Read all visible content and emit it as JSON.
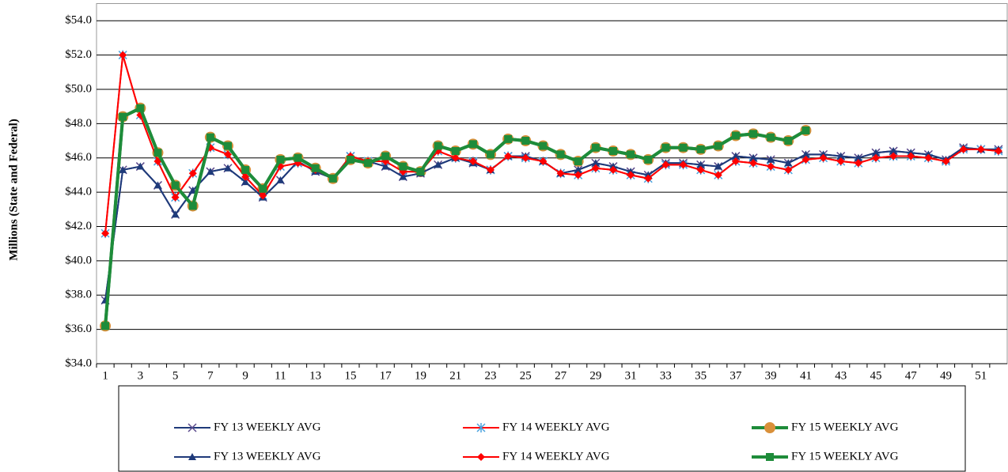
{
  "chart_data": {
    "type": "line",
    "y_label": "Millions (State and Federal)",
    "categories": [
      "1",
      null,
      "3",
      null,
      "5",
      null,
      "7",
      null,
      "9",
      null,
      "11",
      null,
      "13",
      null,
      "15",
      null,
      "17",
      null,
      "19",
      null,
      "21",
      null,
      "23",
      null,
      "25",
      null,
      "27",
      null,
      "29",
      null,
      "31",
      null,
      "33",
      null,
      "35",
      null,
      "37",
      null,
      "39",
      null,
      "41",
      null,
      "43",
      null,
      "45",
      null,
      "47",
      null,
      "49",
      null,
      "51",
      null
    ],
    "ylim": [
      34,
      55
    ],
    "yticks": [
      {
        "value": 34,
        "label": "$34.0"
      },
      {
        "value": 36,
        "label": "$36.0"
      },
      {
        "value": 38,
        "label": "$38.0"
      },
      {
        "value": 40,
        "label": "$40.0"
      },
      {
        "value": 42,
        "label": "$42.0"
      },
      {
        "value": 44,
        "label": "$44.0"
      },
      {
        "value": 46,
        "label": "$46.0"
      },
      {
        "value": 48,
        "label": "$48.0"
      },
      {
        "value": 50,
        "label": "$50.0"
      },
      {
        "value": 52,
        "label": "$52.0"
      },
      {
        "value": 54,
        "label": "$54.0"
      }
    ],
    "grid": true,
    "legend": "bottom",
    "series": [
      {
        "name": "FY 13 WEEKLY AVG",
        "color": "#1f3a7a",
        "marker": "x",
        "marker_color": "#5b4a8c",
        "line_width": 2,
        "values": [
          37.7,
          45.3,
          45.5,
          44.4,
          42.7,
          44.1,
          45.2,
          45.4,
          44.6,
          43.7,
          44.7,
          45.8,
          45.2,
          44.8,
          46.1,
          45.8,
          45.5,
          44.9,
          45.1,
          45.6,
          46.0,
          45.7,
          45.3,
          46.1,
          46.1,
          45.8,
          45.1,
          45.3,
          45.7,
          45.5,
          45.2,
          45.0,
          45.7,
          45.7,
          45.6,
          45.5,
          46.1,
          46.0,
          45.9,
          45.7,
          46.2,
          46.2,
          46.1,
          46.0,
          46.3,
          46.4,
          46.3,
          46.2,
          45.9,
          46.6,
          46.5,
          46.5
        ]
      },
      {
        "name": "FY 14 WEEKLY AVG",
        "color": "#ff0000",
        "marker": "star",
        "marker_color": "#4aa3df",
        "line_width": 2,
        "values": [
          41.6,
          52.0,
          48.5,
          45.8,
          43.7,
          45.1,
          46.6,
          46.2,
          44.9,
          43.8,
          45.5,
          45.7,
          45.3,
          44.8,
          46.1,
          45.8,
          45.8,
          45.2,
          45.2,
          46.4,
          46.0,
          45.8,
          45.3,
          46.1,
          46.0,
          45.8,
          45.1,
          45.0,
          45.4,
          45.3,
          45.0,
          44.8,
          45.6,
          45.6,
          45.3,
          45.0,
          45.8,
          45.7,
          45.5,
          45.3,
          45.9,
          46.0,
          45.8,
          45.7,
          46.0,
          46.1,
          46.1,
          46.0,
          45.8,
          46.5,
          46.5,
          46.4
        ]
      },
      {
        "name": "FY 15 WEEKLY AVG",
        "color": "#1e8c3a",
        "marker": "circle",
        "marker_color": "#d9903a",
        "line_width": 4,
        "values": [
          36.2,
          48.4,
          48.9,
          46.3,
          44.4,
          43.2,
          47.2,
          46.7,
          45.3,
          44.2,
          45.9,
          46.0,
          45.4,
          44.8,
          45.9,
          45.7,
          46.1,
          45.5,
          45.2,
          46.7,
          46.4,
          46.8,
          46.2,
          47.1,
          47.0,
          46.7,
          46.2,
          45.8,
          46.6,
          46.4,
          46.2,
          45.9,
          46.6,
          46.6,
          46.5,
          46.7,
          47.3,
          47.4,
          47.2,
          47.0,
          47.6,
          null,
          null,
          null,
          null,
          null,
          null,
          null,
          null,
          null,
          null,
          null
        ]
      },
      {
        "name": "FY 13 WEEKLY AVG",
        "color": "#1f3a7a",
        "marker": "triangle",
        "marker_color": "#1f3a7a",
        "line_width": 2,
        "values": [
          37.7,
          45.3,
          45.5,
          44.4,
          42.7,
          44.1,
          45.2,
          45.4,
          44.6,
          43.7,
          44.7,
          45.8,
          45.2,
          44.8,
          46.1,
          45.8,
          45.5,
          44.9,
          45.1,
          45.6,
          46.0,
          45.7,
          45.3,
          46.1,
          46.1,
          45.8,
          45.1,
          45.3,
          45.7,
          45.5,
          45.2,
          45.0,
          45.7,
          45.7,
          45.6,
          45.5,
          46.1,
          46.0,
          45.9,
          45.7,
          46.2,
          46.2,
          46.1,
          46.0,
          46.3,
          46.4,
          46.3,
          46.2,
          45.9,
          46.6,
          46.5,
          46.5
        ]
      },
      {
        "name": "FY 14 WEEKLY AVG",
        "color": "#ff0000",
        "marker": "diamond",
        "marker_color": "#ff0000",
        "line_width": 2,
        "values": [
          41.6,
          52.0,
          48.5,
          45.8,
          43.7,
          45.1,
          46.6,
          46.2,
          44.9,
          43.8,
          45.5,
          45.7,
          45.3,
          44.8,
          46.1,
          45.8,
          45.8,
          45.2,
          45.2,
          46.4,
          46.0,
          45.8,
          45.3,
          46.1,
          46.0,
          45.8,
          45.1,
          45.0,
          45.4,
          45.3,
          45.0,
          44.8,
          45.6,
          45.6,
          45.3,
          45.0,
          45.8,
          45.7,
          45.5,
          45.3,
          45.9,
          46.0,
          45.8,
          45.7,
          46.0,
          46.1,
          46.1,
          46.0,
          45.8,
          46.5,
          46.5,
          46.4
        ]
      },
      {
        "name": "FY 15 WEEKLY AVG",
        "color": "#1e8c3a",
        "marker": "square",
        "marker_color": "#1e8c3a",
        "line_width": 4,
        "values": [
          36.2,
          48.4,
          48.9,
          46.3,
          44.4,
          43.2,
          47.2,
          46.7,
          45.3,
          44.2,
          45.9,
          46.0,
          45.4,
          44.8,
          45.9,
          45.7,
          46.1,
          45.5,
          45.2,
          46.7,
          46.4,
          46.8,
          46.2,
          47.1,
          47.0,
          46.7,
          46.2,
          45.8,
          46.6,
          46.4,
          46.2,
          45.9,
          46.6,
          46.6,
          46.5,
          46.7,
          47.3,
          47.4,
          47.2,
          47.0,
          47.6,
          null,
          null,
          null,
          null,
          null,
          null,
          null,
          null,
          null,
          null,
          null
        ]
      }
    ]
  }
}
